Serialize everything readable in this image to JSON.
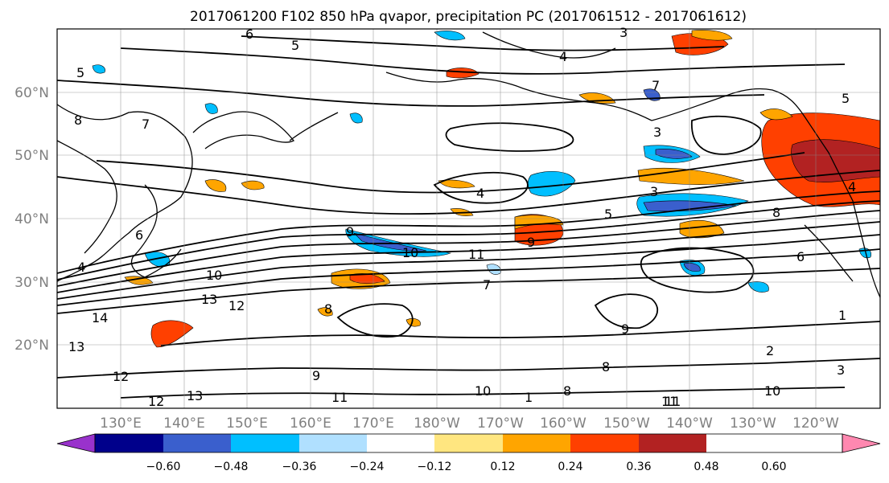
{
  "title": "2017061200 F102 850 hPa qvapor, precipitation PC (2017061512 - 2017061612)",
  "map": {
    "lat_labels": [
      "60°N",
      "50°N",
      "40°N",
      "30°N",
      "20°N"
    ],
    "lon_labels": [
      "130°E",
      "140°E",
      "150°E",
      "160°E",
      "170°E",
      "180°W",
      "170°W",
      "160°W",
      "150°W",
      "140°W",
      "130°W",
      "120°W"
    ],
    "contour_labels": [
      "3",
      "5",
      "7",
      "4",
      "6",
      "5",
      "8",
      "7",
      "9",
      "10",
      "11",
      "12",
      "13",
      "14",
      "13",
      "12",
      "10",
      "11",
      "9",
      "8",
      "7",
      "6",
      "5",
      "4",
      "3",
      "2",
      "1",
      "3",
      "8",
      "11",
      "10",
      "8",
      "1",
      "3",
      "4",
      "6",
      "9",
      "11",
      "13",
      "12",
      "10",
      "9",
      "8",
      "4",
      "5"
    ],
    "gridlines": true
  },
  "colorbar": {
    "orientation": "horizontal",
    "extend": "both",
    "colors": [
      "#9932cc",
      "#00008b",
      "#3a5fcd",
      "#00bfff",
      "#b0e0ff",
      "#ffffff",
      "#ffe680",
      "#ffa500",
      "#ff4000",
      "#b22222",
      "#ff88b0"
    ],
    "ticks": [
      "−0.60",
      "−0.48",
      "−0.36",
      "−0.24",
      "−0.12",
      "0.12",
      "0.24",
      "0.36",
      "0.48",
      "0.60"
    ]
  },
  "precip_colors": {
    "pos_light": "#ffe680",
    "pos_orange": "#ffa500",
    "pos_red": "#ff4000",
    "pos_dark": "#b22222",
    "neg_light": "#b0e0ff",
    "neg_cyan": "#00bfff",
    "neg_blue": "#3a5fcd"
  }
}
